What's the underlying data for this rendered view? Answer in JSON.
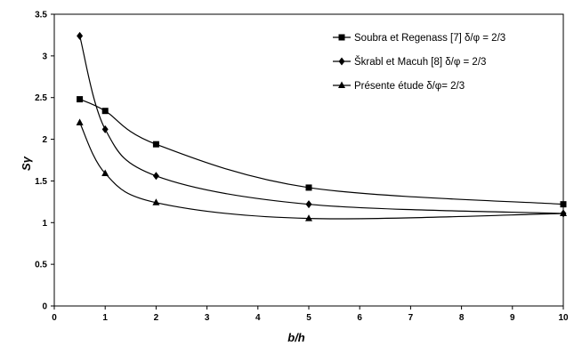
{
  "chart_data": {
    "type": "line",
    "xlabel": "b/h",
    "ylabel": "Sγ",
    "xlim": [
      0,
      10
    ],
    "ylim": [
      0,
      3.5
    ],
    "xticks": [
      "0",
      "1",
      "2",
      "3",
      "4",
      "5",
      "6",
      "7",
      "8",
      "9",
      "10"
    ],
    "yticks": [
      "0",
      "0.5",
      "1",
      "1.5",
      "2",
      "2.5",
      "3",
      "3.5"
    ],
    "grid": false,
    "legend_position": "top-right",
    "series": [
      {
        "name": "Soubra et Regenass [7] δ/φ = 2/3",
        "marker": "square",
        "x": [
          0.5,
          1,
          2,
          5,
          10
        ],
        "y": [
          2.48,
          2.34,
          1.94,
          1.42,
          1.22
        ]
      },
      {
        "name": "Škrabl et Macuh [8] δ/φ = 2/3",
        "marker": "diamond",
        "x": [
          0.5,
          1,
          2,
          5,
          10
        ],
        "y": [
          3.24,
          2.12,
          1.56,
          1.22,
          1.11
        ]
      },
      {
        "name": "Présente étude  δ/φ= 2/3",
        "marker": "triangle",
        "x": [
          0.5,
          1,
          2,
          5,
          10
        ],
        "y": [
          2.2,
          1.59,
          1.24,
          1.05,
          1.11
        ]
      }
    ]
  }
}
